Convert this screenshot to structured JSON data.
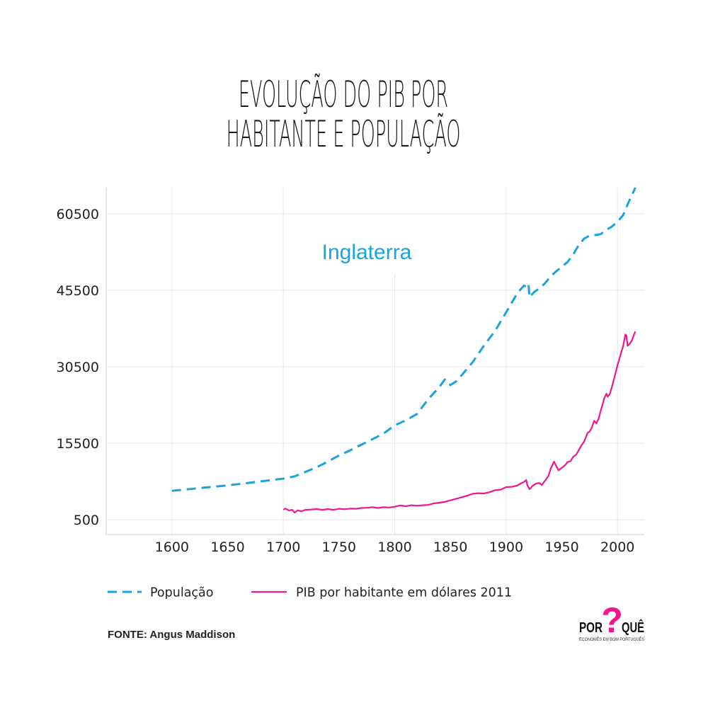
{
  "chart_data": {
    "type": "line",
    "title": "EVOLUÇÃO DO PIB POR HABITANTE E POPULAÇÃO",
    "annotation": "Inglaterra",
    "xlim": [
      1541,
      2024
    ],
    "ylim": [
      -2400,
      65600
    ],
    "x_ticks": [
      1600,
      1650,
      1700,
      1750,
      1800,
      1850,
      1900,
      1950,
      2000
    ],
    "y_ticks": [
      500,
      15500,
      30500,
      45500,
      60500
    ],
    "grid": true,
    "legend_position": "bottom-left",
    "series": [
      {
        "name": "População",
        "color": "#1aa3df",
        "style": "dashed",
        "points": [
          [
            1600,
            6170
          ],
          [
            1650,
            7230
          ],
          [
            1700,
            8565
          ],
          [
            1710,
            9000
          ],
          [
            1720,
            9900
          ],
          [
            1730,
            10800
          ],
          [
            1740,
            11900
          ],
          [
            1750,
            13100
          ],
          [
            1760,
            14100
          ],
          [
            1770,
            15200
          ],
          [
            1780,
            16300
          ],
          [
            1790,
            17400
          ],
          [
            1800,
            19000
          ],
          [
            1810,
            20000
          ],
          [
            1820,
            21240
          ],
          [
            1830,
            24100
          ],
          [
            1840,
            26500
          ],
          [
            1845,
            28000
          ],
          [
            1848,
            27200
          ],
          [
            1850,
            26900
          ],
          [
            1855,
            27600
          ],
          [
            1860,
            28800
          ],
          [
            1870,
            31400
          ],
          [
            1880,
            34600
          ],
          [
            1890,
            37500
          ],
          [
            1900,
            41155
          ],
          [
            1910,
            44900
          ],
          [
            1913,
            45650
          ],
          [
            1916,
            46400
          ],
          [
            1918,
            46200
          ],
          [
            1920,
            46800
          ],
          [
            1921,
            44100
          ],
          [
            1925,
            45100
          ],
          [
            1930,
            45870
          ],
          [
            1935,
            46900
          ],
          [
            1940,
            48200
          ],
          [
            1945,
            49200
          ],
          [
            1950,
            50127
          ],
          [
            1955,
            51000
          ],
          [
            1960,
            52400
          ],
          [
            1965,
            54300
          ],
          [
            1970,
            55600
          ],
          [
            1975,
            56200
          ],
          [
            1980,
            56300
          ],
          [
            1985,
            56500
          ],
          [
            1990,
            57300
          ],
          [
            1995,
            58000
          ],
          [
            2000,
            58900
          ],
          [
            2005,
            60200
          ],
          [
            2010,
            62800
          ],
          [
            2016,
            65600
          ]
        ]
      },
      {
        "name": "PIB por habitante em dólares 2011",
        "color": "#f2168e",
        "style": "solid",
        "points": [
          [
            1700,
            2500
          ],
          [
            1702,
            2700
          ],
          [
            1705,
            2300
          ],
          [
            1708,
            2450
          ],
          [
            1710,
            1900
          ],
          [
            1713,
            2350
          ],
          [
            1716,
            2150
          ],
          [
            1720,
            2450
          ],
          [
            1725,
            2500
          ],
          [
            1730,
            2600
          ],
          [
            1735,
            2450
          ],
          [
            1740,
            2600
          ],
          [
            1745,
            2450
          ],
          [
            1750,
            2650
          ],
          [
            1755,
            2550
          ],
          [
            1760,
            2700
          ],
          [
            1765,
            2650
          ],
          [
            1770,
            2800
          ],
          [
            1775,
            2850
          ],
          [
            1780,
            2950
          ],
          [
            1785,
            2800
          ],
          [
            1790,
            2950
          ],
          [
            1795,
            2900
          ],
          [
            1800,
            3050
          ],
          [
            1805,
            3300
          ],
          [
            1810,
            3150
          ],
          [
            1815,
            3350
          ],
          [
            1820,
            3250
          ],
          [
            1825,
            3350
          ],
          [
            1830,
            3400
          ],
          [
            1835,
            3700
          ],
          [
            1840,
            3850
          ],
          [
            1845,
            4000
          ],
          [
            1850,
            4300
          ],
          [
            1855,
            4600
          ],
          [
            1860,
            4900
          ],
          [
            1865,
            5200
          ],
          [
            1870,
            5600
          ],
          [
            1875,
            5700
          ],
          [
            1880,
            5650
          ],
          [
            1885,
            5900
          ],
          [
            1890,
            6300
          ],
          [
            1895,
            6400
          ],
          [
            1900,
            6900
          ],
          [
            1905,
            6950
          ],
          [
            1910,
            7200
          ],
          [
            1913,
            7600
          ],
          [
            1916,
            7900
          ],
          [
            1918,
            8300
          ],
          [
            1919,
            7300
          ],
          [
            1921,
            6500
          ],
          [
            1924,
            7200
          ],
          [
            1927,
            7600
          ],
          [
            1930,
            7700
          ],
          [
            1932,
            7300
          ],
          [
            1935,
            8200
          ],
          [
            1938,
            9100
          ],
          [
            1940,
            10500
          ],
          [
            1943,
            11900
          ],
          [
            1945,
            11000
          ],
          [
            1947,
            10200
          ],
          [
            1950,
            10700
          ],
          [
            1953,
            11200
          ],
          [
            1955,
            11800
          ],
          [
            1958,
            12000
          ],
          [
            1960,
            12800
          ],
          [
            1963,
            13300
          ],
          [
            1965,
            14100
          ],
          [
            1968,
            15200
          ],
          [
            1970,
            15800
          ],
          [
            1973,
            17500
          ],
          [
            1975,
            17800
          ],
          [
            1977,
            18600
          ],
          [
            1979,
            19900
          ],
          [
            1981,
            19400
          ],
          [
            1983,
            20300
          ],
          [
            1985,
            21900
          ],
          [
            1988,
            24300
          ],
          [
            1990,
            25200
          ],
          [
            1991,
            24600
          ],
          [
            1993,
            25100
          ],
          [
            1995,
            26600
          ],
          [
            1997,
            28200
          ],
          [
            2000,
            30800
          ],
          [
            2003,
            33100
          ],
          [
            2005,
            34500
          ],
          [
            2007,
            36800
          ],
          [
            2008,
            36600
          ],
          [
            2009,
            34600
          ],
          [
            2011,
            35000
          ],
          [
            2013,
            35700
          ],
          [
            2015,
            36900
          ],
          [
            2016,
            37400
          ]
        ]
      }
    ]
  },
  "source": "FONTE: Angus Maddison",
  "logo": {
    "left": "POR",
    "mark": "?",
    "right": "QUÊ",
    "tagline": "ECONOMÊS EM BOM PORTUGUÊS",
    "mark_color": "#f2168e"
  }
}
